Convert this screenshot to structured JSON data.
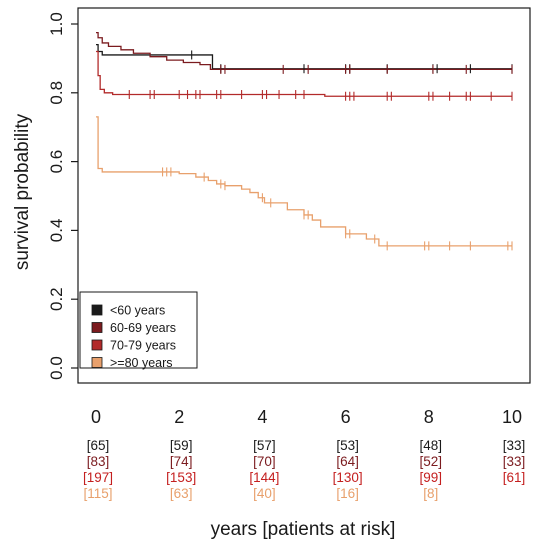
{
  "chart_data": {
    "type": "line",
    "subtype": "kaplan-meier",
    "title": "",
    "ylabel": "survival probability",
    "xlabel": "years [patients at risk]",
    "xlim": [
      0,
      10
    ],
    "ylim": [
      0,
      1
    ],
    "x_ticks": [
      0,
      2,
      4,
      6,
      8,
      10
    ],
    "x_tick_labels": [
      "0",
      "2",
      "4",
      "6",
      "8",
      "10"
    ],
    "y_ticks": [
      0,
      0.2,
      0.4,
      0.6,
      0.8,
      1.0
    ],
    "y_tick_labels": [
      "0.0",
      "0.2",
      "0.4",
      "0.6",
      "0.8",
      "1.0"
    ],
    "grid": false,
    "legend_position": "bottom-left",
    "series": [
      {
        "name": "<60 years",
        "color": "#1a1a1a",
        "steps": [
          [
            0,
            0.94
          ],
          [
            0.05,
            0.92
          ],
          [
            0.15,
            0.91
          ],
          [
            2.8,
            0.87
          ],
          [
            10,
            0.87
          ]
        ],
        "censor_times": [
          2.3,
          3.0,
          5.0,
          6.0,
          6.1,
          7.0,
          8.1,
          8.2,
          9.0,
          10.0
        ],
        "at_risk": [
          "[65]",
          "[59]",
          "[57]",
          "[53]",
          "[48]",
          "[33]"
        ]
      },
      {
        "name": "60-69 years",
        "color": "#7b1b1f",
        "steps": [
          [
            0,
            0.975
          ],
          [
            0.05,
            0.96
          ],
          [
            0.15,
            0.945
          ],
          [
            0.3,
            0.935
          ],
          [
            0.6,
            0.925
          ],
          [
            0.9,
            0.915
          ],
          [
            1.3,
            0.905
          ],
          [
            1.7,
            0.895
          ],
          [
            2.1,
            0.888
          ],
          [
            2.5,
            0.882
          ],
          [
            2.75,
            0.868
          ],
          [
            10,
            0.868
          ]
        ],
        "censor_times": [
          3.0,
          3.1,
          4.5,
          5.1,
          6.0,
          6.1,
          7.0,
          8.1,
          8.9,
          10.0
        ],
        "at_risk": [
          "[83]",
          "[74]",
          "[70]",
          "[64]",
          "[52]",
          "[33]"
        ]
      },
      {
        "name": "70-79 years",
        "color": "#b22a2a",
        "steps": [
          [
            0,
            0.92
          ],
          [
            0.05,
            0.85
          ],
          [
            0.1,
            0.81
          ],
          [
            0.2,
            0.8
          ],
          [
            0.4,
            0.795
          ],
          [
            5.5,
            0.79
          ],
          [
            10,
            0.79
          ]
        ],
        "censor_times": [
          0.8,
          1.3,
          1.4,
          2.0,
          2.2,
          2.4,
          2.5,
          2.9,
          3.0,
          3.5,
          4.0,
          4.1,
          4.4,
          4.8,
          5.0,
          6.0,
          6.1,
          6.2,
          7.0,
          7.1,
          8.0,
          8.1,
          8.5,
          8.9,
          9.0,
          9.5,
          10.0
        ],
        "at_risk": [
          "[197]",
          "[153]",
          "[144]",
          "[130]",
          "[99]",
          "[61]"
        ]
      },
      {
        "name": ">=80 years",
        "color": "#e8a06c",
        "steps": [
          [
            0,
            0.73
          ],
          [
            0.05,
            0.58
          ],
          [
            0.15,
            0.57
          ],
          [
            2.0,
            0.565
          ],
          [
            2.4,
            0.555
          ],
          [
            2.7,
            0.545
          ],
          [
            2.9,
            0.535
          ],
          [
            3.1,
            0.53
          ],
          [
            3.5,
            0.52
          ],
          [
            3.7,
            0.51
          ],
          [
            3.9,
            0.495
          ],
          [
            4.05,
            0.48
          ],
          [
            4.6,
            0.46
          ],
          [
            5.0,
            0.445
          ],
          [
            5.2,
            0.43
          ],
          [
            5.4,
            0.41
          ],
          [
            6.0,
            0.39
          ],
          [
            6.5,
            0.375
          ],
          [
            6.8,
            0.355
          ],
          [
            10,
            0.355
          ]
        ],
        "censor_times": [
          1.6,
          1.7,
          1.8,
          2.6,
          3.0,
          3.1,
          4.0,
          4.2,
          5.0,
          5.1,
          6.0,
          6.1,
          6.7,
          7.0,
          7.9,
          8.0,
          8.5,
          9.0,
          9.9,
          10.0
        ],
        "at_risk": [
          "[115]",
          "[63]",
          "[40]",
          "[16]",
          "[8]",
          ""
        ]
      }
    ]
  }
}
